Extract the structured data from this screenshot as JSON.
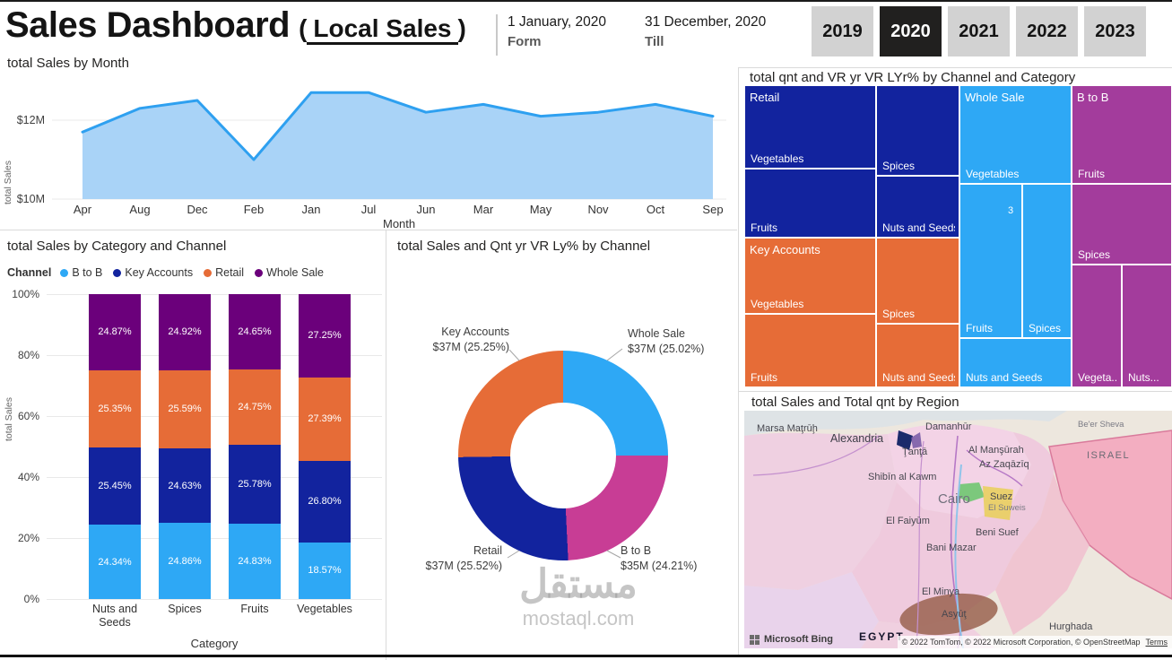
{
  "header": {
    "title": "Sales Dashboard",
    "paren_open": "(",
    "subtitle": "Local Sales",
    "paren_close": ")",
    "from_value": "1 January, 2020",
    "from_label": "Form",
    "till_value": "31 December, 2020",
    "till_label": "Till",
    "years": [
      {
        "label": "2019",
        "selected": false
      },
      {
        "label": "2020",
        "selected": true
      },
      {
        "label": "2021",
        "selected": false
      },
      {
        "label": "2022",
        "selected": false
      },
      {
        "label": "2023",
        "selected": false
      }
    ]
  },
  "watermark": {
    "arabic": "مستقل",
    "domain": "mostaql.com"
  },
  "colors": {
    "accent_blue": "#2EA8F5",
    "navy": "#12239E",
    "orange": "#E66C37",
    "purple": "#6B007B",
    "magenta": "#C83D95",
    "treemap_btob": "#A33C9C",
    "area_fill": "#A9D3F7",
    "selected_year_bg": "#21201F",
    "year_bg": "#D2D2D2"
  },
  "chart_data": [
    {
      "type": "area",
      "title": "total Sales by Month",
      "xlabel": "Month",
      "ylabel": "total Sales",
      "categories": [
        "Apr",
        "Aug",
        "Dec",
        "Feb",
        "Jan",
        "Jul",
        "Jun",
        "Mar",
        "May",
        "Nov",
        "Oct",
        "Sep"
      ],
      "values": [
        11.7,
        12.3,
        12.5,
        11.0,
        12.7,
        12.7,
        12.2,
        12.4,
        12.1,
        12.2,
        12.4,
        12.1
      ],
      "unit": "$M",
      "ylim": [
        10,
        13
      ],
      "yticks": [
        "$12M",
        "$10M"
      ]
    },
    {
      "type": "treemap",
      "title": "total qnt and VR yr VR LYr% by Channel and Category",
      "value_note": "3",
      "groups": [
        {
          "name": "Retail",
          "color": "#12239E",
          "cells": [
            "Vegetables",
            "Spices",
            "Fruits",
            "Nuts and Seeds"
          ]
        },
        {
          "name": "Key Accounts",
          "color": "#E66C37",
          "cells": [
            "Vegetables",
            "Spices",
            "Fruits",
            "Nuts and Seeds"
          ]
        },
        {
          "name": "Whole Sale",
          "color": "#2EA8F5",
          "cells": [
            "Vegetables",
            "Fruits",
            "Spices",
            "Nuts and Seeds"
          ]
        },
        {
          "name": "B to B",
          "color": "#A33C9C",
          "cells": [
            "Fruits",
            "Spices",
            "Vegeta...",
            "Nuts..."
          ]
        }
      ]
    },
    {
      "type": "stacked-bar-100",
      "title": "total Sales by Category and Channel",
      "xlabel": "Category",
      "ylabel": "total Sales",
      "legend_title": "Channel",
      "categories": [
        "Nuts and Seeds",
        "Spices",
        "Fruits",
        "Vegetables"
      ],
      "yticks": [
        "100%",
        "80%",
        "60%",
        "40%",
        "20%",
        "0%"
      ],
      "series": [
        {
          "name": "B to B",
          "color": "#2EA8F5",
          "values": [
            24.34,
            24.86,
            24.83,
            18.57
          ]
        },
        {
          "name": "Key Accounts",
          "color": "#12239E",
          "values": [
            25.45,
            24.63,
            25.78,
            26.8
          ]
        },
        {
          "name": "Retail",
          "color": "#E66C37",
          "values": [
            25.35,
            25.59,
            24.75,
            27.39
          ]
        },
        {
          "name": "Whole Sale",
          "color": "#6B007B",
          "values": [
            24.87,
            24.92,
            24.65,
            27.25
          ]
        }
      ]
    },
    {
      "type": "donut",
      "title": "total Sales and Qnt yr VR Ly% by Channel",
      "slices": [
        {
          "name": "Whole Sale",
          "value_label": "$37M (25.02%)",
          "pct": 25.02,
          "color": "#2EA8F5"
        },
        {
          "name": "B to B",
          "value_label": "$35M (24.21%)",
          "pct": 24.21,
          "color": "#C83D95"
        },
        {
          "name": "Retail",
          "value_label": "$37M (25.52%)",
          "pct": 25.52,
          "color": "#12239E"
        },
        {
          "name": "Key Accounts",
          "value_label": "$37M (25.25%)",
          "pct": 25.25,
          "color": "#E66C37"
        }
      ]
    },
    {
      "type": "map",
      "title": "total Sales and Total qnt by Region",
      "cities": {
        "beer_sheva": "Be'er Sheva",
        "marsa_matruh": "Marsa Maţrūḩ",
        "alexandria": "Alexandria",
        "damanhur": "Damanhūr",
        "tanta": "Ţanţā",
        "al_mansurah": "Al Manşūrah",
        "az_zaqaziq": "Az Zaqāzīq",
        "shibin_al_kawm": "Shibīn al Kawm",
        "cairo": "Cairo",
        "suez": "Suez",
        "el_suweis": "El Suweis",
        "el_faiyum": "El Faiyūm",
        "beni_suef": "Beni Suef",
        "bani_mazar": "Bani Mazar",
        "el_minya": "El Minya",
        "asyut": "Asyūţ",
        "hurghada": "Hurghada"
      },
      "regions": {
        "israel": "ISRAEL",
        "egypt": "EGYPT"
      },
      "brand": "Microsoft Bing",
      "attribution": "© 2022 TomTom, © 2022 Microsoft Corporation, © OpenStreetMap",
      "terms": "Terms"
    }
  ]
}
